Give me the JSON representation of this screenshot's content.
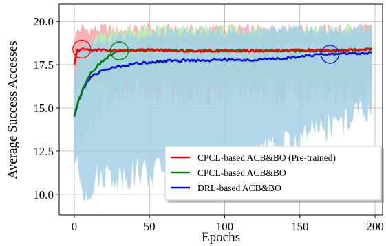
{
  "chart_data": {
    "type": "line",
    "xlabel": "Epochs",
    "ylabel": "Average Success Accesses",
    "xlim": [
      -10,
      205
    ],
    "ylim": [
      8.8,
      21
    ],
    "xticks": [
      0,
      50,
      100,
      150,
      200
    ],
    "yticks": [
      10.0,
      12.5,
      15.0,
      17.5,
      20.0
    ],
    "xtick_labels": [
      "0",
      "50",
      "100",
      "150",
      "200"
    ],
    "ytick_labels": [
      "10.0",
      "12.5",
      "15.0",
      "17.5",
      "20.0"
    ],
    "grid": true,
    "legend_position": "lower-right",
    "series": [
      {
        "name": "CPCL-based ACB&BO (Pre-trained)",
        "color": "#ff0000",
        "band_color": "#f4a6a6",
        "x": [
          0,
          2,
          5,
          10,
          20,
          30,
          50,
          75,
          100,
          125,
          150,
          175,
          198
        ],
        "values": [
          17.5,
          18.3,
          18.4,
          18.35,
          18.35,
          18.3,
          18.35,
          18.3,
          18.3,
          18.3,
          18.35,
          18.3,
          18.4
        ],
        "band_upper": [
          18.8,
          19.5,
          19.6,
          19.5,
          19.6,
          19.5,
          19.6,
          19.5,
          19.6,
          19.5,
          19.6,
          19.5,
          19.6
        ],
        "band_lower": [
          16.5,
          16.0,
          15.8,
          15.9,
          16.0,
          15.8,
          16.0,
          15.8,
          15.9,
          16.0,
          15.8,
          15.9,
          16.0
        ],
        "marker_epoch": 5
      },
      {
        "name": "CPCL-based ACB&BO",
        "color": "#008000",
        "band_color": "#b6f0b6",
        "x": [
          0,
          3,
          6,
          10,
          15,
          20,
          25,
          30,
          40,
          50,
          75,
          100,
          125,
          150,
          175,
          198
        ],
        "values": [
          14.5,
          15.5,
          16.2,
          16.9,
          17.4,
          17.8,
          18.1,
          18.3,
          18.3,
          18.35,
          18.3,
          18.3,
          18.3,
          18.3,
          18.3,
          18.4
        ],
        "band_upper": [
          16.0,
          17.5,
          18.0,
          18.6,
          19.0,
          19.3,
          19.4,
          19.5,
          19.5,
          19.5,
          19.5,
          19.5,
          19.5,
          19.5,
          19.5,
          19.6
        ],
        "band_lower": [
          12.8,
          13.2,
          13.8,
          14.3,
          14.8,
          15.2,
          15.5,
          15.8,
          16.0,
          16.0,
          15.9,
          16.0,
          15.9,
          16.0,
          15.9,
          16.0
        ],
        "marker_epoch": 30
      },
      {
        "name": "DRL-based ACB&BO",
        "color": "#0000ff",
        "band_color": "#a6cfe8",
        "x": [
          0,
          3,
          6,
          10,
          15,
          20,
          30,
          40,
          50,
          60,
          75,
          90,
          100,
          110,
          125,
          140,
          150,
          160,
          170,
          180,
          190,
          198
        ],
        "values": [
          14.5,
          15.4,
          16.1,
          16.7,
          17.0,
          17.2,
          17.4,
          17.55,
          17.65,
          17.7,
          17.75,
          17.75,
          17.8,
          17.75,
          17.8,
          17.85,
          18.0,
          18.05,
          18.1,
          18.15,
          18.15,
          18.2
        ],
        "band_upper": [
          17.0,
          18.0,
          18.5,
          18.8,
          19.0,
          19.0,
          19.1,
          19.2,
          19.2,
          19.3,
          19.3,
          19.4,
          19.4,
          19.4,
          19.4,
          19.5,
          19.5,
          19.5,
          19.5,
          19.5,
          19.6,
          19.6
        ],
        "band_lower": [
          11.8,
          11.2,
          10.2,
          10.4,
          10.8,
          11.2,
          11.0,
          11.3,
          11.2,
          11.5,
          11.4,
          11.8,
          11.6,
          12.0,
          12.4,
          12.8,
          13.2,
          13.6,
          13.9,
          14.2,
          14.8,
          15.2
        ],
        "marker_epoch": 170
      }
    ]
  }
}
